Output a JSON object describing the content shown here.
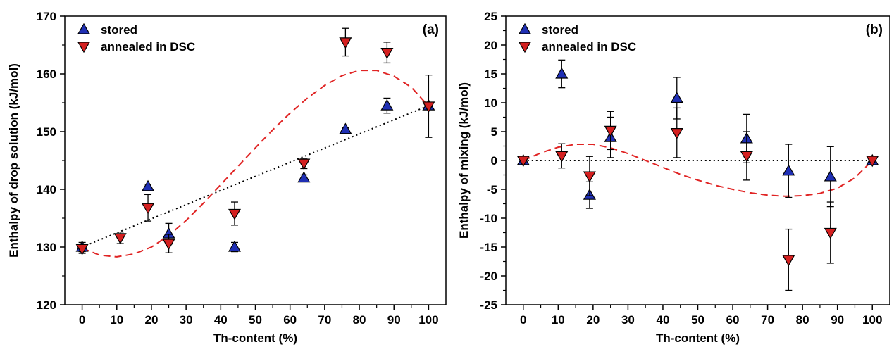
{
  "colors": {
    "stored": "#1f2fb4",
    "annealed": "#d42020",
    "fit": "#e02424",
    "linear": "#000000"
  },
  "chart_data": [
    {
      "type": "scatter",
      "panel_label": "(a)",
      "xlabel": "Th-content (%)",
      "ylabel": "Enthalpy of drop solution (kJ/mol)",
      "xlim": [
        -5,
        105
      ],
      "ylim": [
        120,
        170
      ],
      "xticks": [
        "0",
        "10",
        "20",
        "30",
        "40",
        "50",
        "60",
        "70",
        "80",
        "90",
        "100"
      ],
      "yticks": [
        "120",
        "130",
        "140",
        "150",
        "160",
        "170"
      ],
      "legend": {
        "position": "top-left",
        "entries": [
          "stored",
          "annealed in DSC"
        ]
      },
      "series": [
        {
          "name": "stored",
          "marker": "triangle-up",
          "color_key": "stored",
          "points": [
            {
              "x": 0,
              "y": 130.0,
              "err": 0.8
            },
            {
              "x": 19,
              "y": 140.5,
              "err": 0.4
            },
            {
              "x": 25,
              "y": 132.3,
              "err": 1.8
            },
            {
              "x": 44,
              "y": 130.0,
              "err": 0.8
            },
            {
              "x": 64,
              "y": 142.0,
              "err": 0.5
            },
            {
              "x": 76,
              "y": 150.4,
              "err": 0.3
            },
            {
              "x": 88,
              "y": 154.5,
              "err": 1.3
            },
            {
              "x": 100,
              "y": 154.5,
              "err": 0.6
            }
          ]
        },
        {
          "name": "annealed in DSC",
          "marker": "triangle-down",
          "color_key": "annealed",
          "points": [
            {
              "x": 0,
              "y": 129.7,
              "err": 0.8
            },
            {
              "x": 11,
              "y": 131.6,
              "err": 1.0
            },
            {
              "x": 19,
              "y": 136.8,
              "err": 2.3
            },
            {
              "x": 25,
              "y": 130.6,
              "err": 1.6
            },
            {
              "x": 44,
              "y": 135.8,
              "err": 2.0
            },
            {
              "x": 64,
              "y": 144.5,
              "err": 0.9
            },
            {
              "x": 76,
              "y": 165.5,
              "err": 2.4
            },
            {
              "x": 88,
              "y": 163.7,
              "err": 1.8
            },
            {
              "x": 100,
              "y": 154.4,
              "err": 5.4
            }
          ]
        }
      ],
      "lines": [
        {
          "style": "dotted",
          "color_key": "linear",
          "x": [
            0,
            100
          ],
          "y": [
            130.0,
            154.5
          ]
        },
        {
          "style": "dashed",
          "color_key": "fit",
          "x": [
            0,
            5,
            10,
            15,
            20,
            25,
            30,
            35,
            40,
            45,
            50,
            55,
            60,
            65,
            70,
            75,
            80,
            85,
            90,
            95,
            100
          ],
          "y": [
            129.8,
            128.6,
            128.3,
            128.8,
            130.0,
            132.0,
            134.6,
            137.6,
            140.8,
            144.0,
            147.2,
            150.3,
            153.2,
            155.8,
            158.0,
            159.7,
            160.6,
            160.6,
            159.6,
            157.7,
            154.4
          ]
        }
      ]
    },
    {
      "type": "scatter",
      "panel_label": "(b)",
      "xlabel": "Th-content (%)",
      "ylabel": "Enthalpy of mixing (kJ/mol)",
      "xlim": [
        -5,
        105
      ],
      "ylim": [
        -25,
        25
      ],
      "xticks": [
        "0",
        "10",
        "20",
        "30",
        "40",
        "50",
        "60",
        "70",
        "80",
        "90",
        "100"
      ],
      "yticks": [
        "-25",
        "-20",
        "-15",
        "-10",
        "-5",
        "0",
        "5",
        "10",
        "15",
        "20",
        "25"
      ],
      "legend": {
        "position": "top-left",
        "entries": [
          "stored",
          "annealed in DSC"
        ]
      },
      "series": [
        {
          "name": "stored",
          "marker": "triangle-up",
          "color_key": "stored",
          "points": [
            {
              "x": 0,
              "y": 0.0,
              "err": 0.4
            },
            {
              "x": 11,
              "y": 15.0,
              "err": 2.4
            },
            {
              "x": 19,
              "y": -6.0,
              "err": 2.3
            },
            {
              "x": 25,
              "y": 4.0,
              "err": 3.5
            },
            {
              "x": 44,
              "y": 10.8,
              "err": 3.6
            },
            {
              "x": 64,
              "y": 3.8,
              "err": 4.2
            },
            {
              "x": 76,
              "y": -1.8,
              "err": 4.6
            },
            {
              "x": 88,
              "y": -2.8,
              "err": 5.2
            },
            {
              "x": 100,
              "y": 0.0,
              "err": 0.4
            }
          ]
        },
        {
          "name": "annealed in DSC",
          "marker": "triangle-down",
          "color_key": "annealed",
          "points": [
            {
              "x": 0,
              "y": 0.0,
              "err": 0.4
            },
            {
              "x": 11,
              "y": 0.8,
              "err": 2.1
            },
            {
              "x": 19,
              "y": -2.7,
              "err": 3.4
            },
            {
              "x": 25,
              "y": 5.2,
              "err": 3.3
            },
            {
              "x": 44,
              "y": 4.8,
              "err": 4.3
            },
            {
              "x": 64,
              "y": 0.8,
              "err": 4.2
            },
            {
              "x": 76,
              "y": -17.2,
              "err": 5.3
            },
            {
              "x": 88,
              "y": -12.5,
              "err": 5.3
            },
            {
              "x": 100,
              "y": 0.0,
              "err": 0.4
            }
          ]
        }
      ],
      "lines": [
        {
          "style": "dotted",
          "color_key": "linear",
          "x": [
            0,
            100
          ],
          "y": [
            0,
            0
          ]
        },
        {
          "style": "dashed",
          "color_key": "fit",
          "x": [
            0,
            5,
            10,
            15,
            20,
            25,
            30,
            35,
            40,
            45,
            50,
            55,
            60,
            65,
            70,
            75,
            80,
            85,
            90,
            95,
            100
          ],
          "y": [
            0.0,
            1.3,
            2.3,
            2.8,
            2.8,
            2.2,
            1.2,
            0.0,
            -1.2,
            -2.4,
            -3.4,
            -4.3,
            -5.0,
            -5.6,
            -6.0,
            -6.2,
            -6.1,
            -5.7,
            -4.8,
            -3.0,
            0.0
          ]
        }
      ]
    }
  ]
}
